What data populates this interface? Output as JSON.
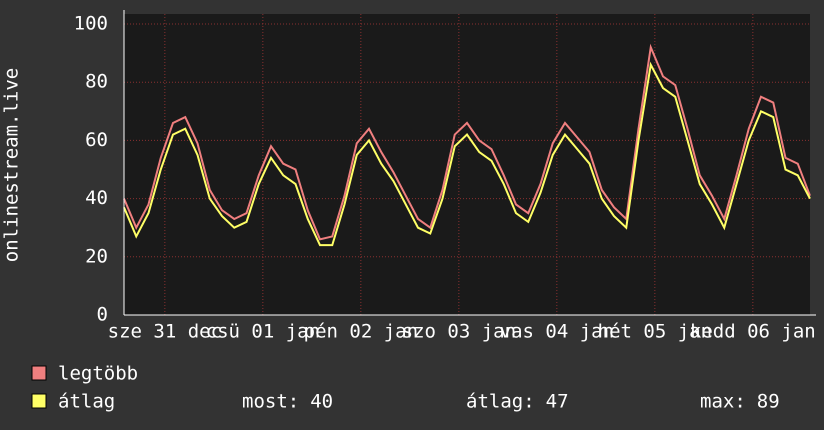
{
  "chart_data": {
    "type": "line",
    "y_label": "onlinestream.live",
    "x": [
      0,
      3,
      6,
      9,
      12,
      15,
      18,
      21,
      24,
      27,
      30,
      33,
      36,
      39,
      42,
      45,
      48,
      51,
      54,
      57,
      60,
      63,
      66,
      69,
      72,
      75,
      78,
      81,
      84,
      87,
      90,
      93,
      96,
      99,
      102,
      105,
      108,
      111,
      114,
      117,
      120,
      123,
      126,
      129,
      132,
      135,
      138,
      141,
      144,
      147,
      150,
      153,
      156,
      159,
      162,
      165,
      168
    ],
    "series": [
      {
        "name": "legtöbb",
        "color": "#f07f7f",
        "values": [
          40,
          30,
          38,
          54,
          66,
          68,
          59,
          43,
          36,
          33,
          35,
          48,
          58,
          52,
          50,
          36,
          26,
          27,
          41,
          59,
          64,
          56,
          49,
          41,
          33,
          30,
          43,
          62,
          66,
          60,
          57,
          48,
          38,
          35,
          45,
          59,
          66,
          61,
          56,
          43,
          37,
          33,
          64,
          92,
          82,
          79,
          64,
          48,
          41,
          33,
          48,
          64,
          75,
          73,
          54,
          52,
          41
        ]
      },
      {
        "name": "átlag",
        "color": "#ffff66",
        "values": [
          37,
          27,
          35,
          50,
          62,
          64,
          55,
          40,
          34,
          30,
          32,
          45,
          54,
          48,
          45,
          33,
          24,
          24,
          38,
          55,
          60,
          52,
          46,
          38,
          30,
          28,
          40,
          58,
          62,
          56,
          53,
          45,
          35,
          32,
          42,
          55,
          62,
          57,
          52,
          40,
          34,
          30,
          60,
          86,
          78,
          75,
          60,
          45,
          38,
          30,
          45,
          60,
          70,
          68,
          50,
          48,
          40
        ]
      }
    ],
    "stats": [
      {
        "label": "most:",
        "value": 40
      },
      {
        "label": "átlag:",
        "value": 47
      },
      {
        "label": "max:",
        "value": 89
      }
    ],
    "xlim": [
      0,
      168
    ],
    "xticks": [
      {
        "value": 10,
        "label": "sze 31 dec"
      },
      {
        "value": 34,
        "label": "csü 01 jan"
      },
      {
        "value": 58,
        "label": "pén 02 jan"
      },
      {
        "value": 82,
        "label": "szo 03 jan"
      },
      {
        "value": 106,
        "label": "vas 04 jan"
      },
      {
        "value": 130,
        "label": "hét 05 jan"
      },
      {
        "value": 154,
        "label": "kedd 06 jan"
      }
    ],
    "ylim": [
      0,
      100
    ],
    "yticks": [
      0,
      20,
      40,
      60,
      80,
      100
    ],
    "grid": true
  }
}
